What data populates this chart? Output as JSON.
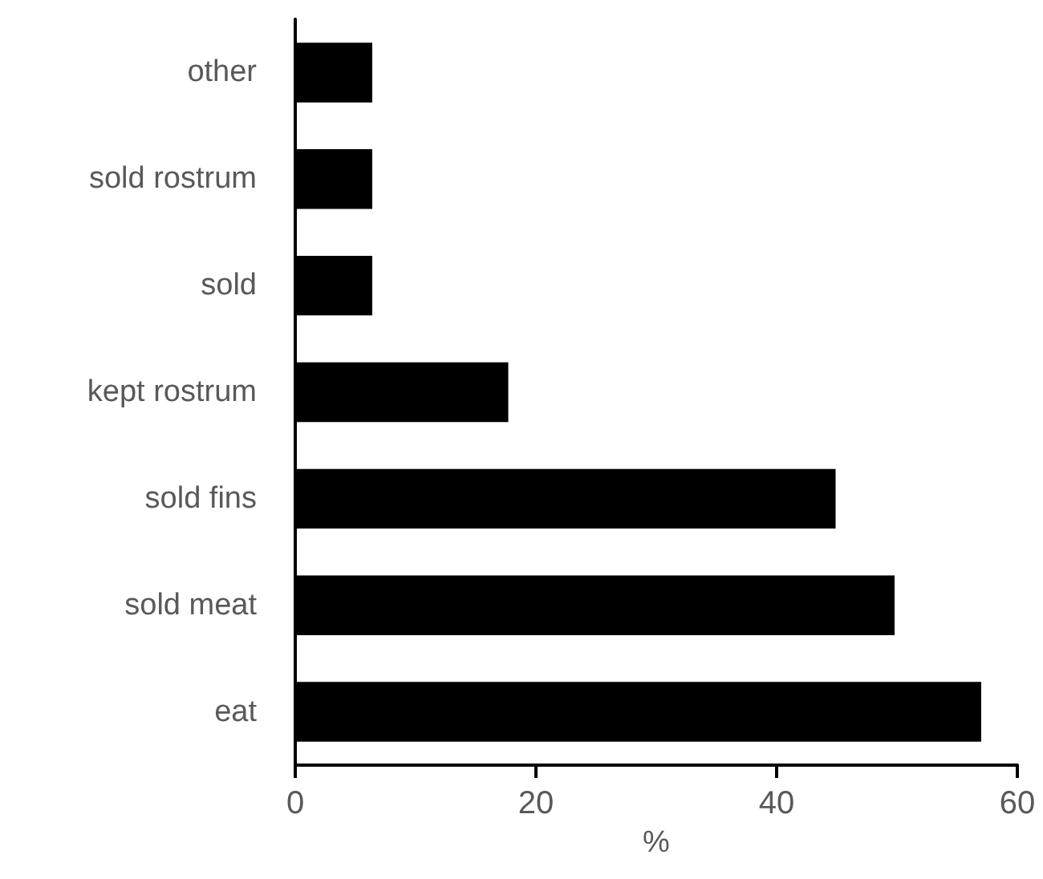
{
  "chart_data": {
    "type": "bar",
    "orientation": "horizontal",
    "xlabel": "%",
    "categories": [
      "other",
      "sold rostrum",
      "sold",
      "kept rostrum",
      "sold fins",
      "sold meat",
      "eat"
    ],
    "values": [
      6.4,
      6.4,
      6.4,
      17.7,
      44.9,
      49.8,
      57
    ],
    "color": "#000000",
    "xlim": [
      0,
      60
    ],
    "xticks": [
      0,
      20,
      40,
      60
    ],
    "grid": false
  }
}
